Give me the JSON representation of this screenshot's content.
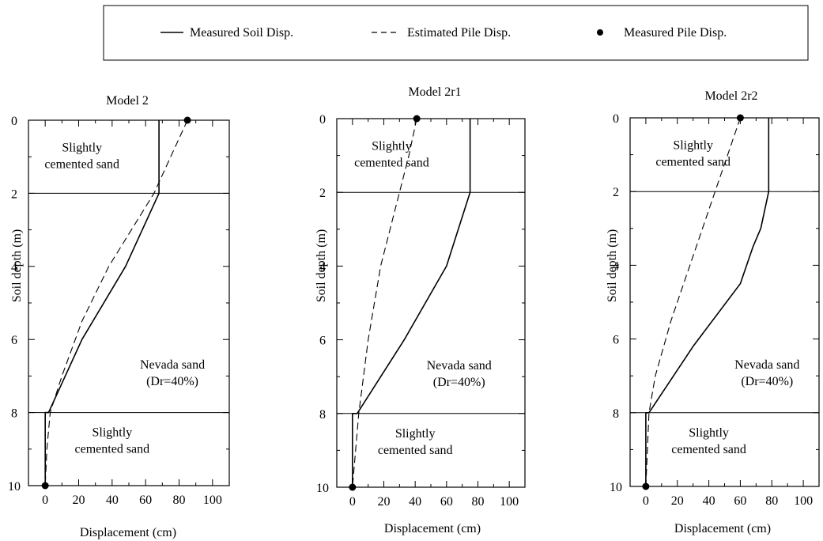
{
  "legend": {
    "items": [
      {
        "label": "Measured Soil Disp.",
        "style": "solid"
      },
      {
        "label": "Estimated Pile Disp.",
        "style": "dashed"
      },
      {
        "label": "Measured Pile Disp.",
        "style": "marker"
      }
    ]
  },
  "chart_data": [
    {
      "type": "line",
      "title": "Model 2",
      "xlabel": "Displacement (cm)",
      "ylabel": "Soil depth (m)",
      "xlim": [
        -10,
        110
      ],
      "ylim": [
        10,
        0
      ],
      "xticks": [
        "0",
        "20",
        "40",
        "60",
        "80",
        "100"
      ],
      "yticks": [
        "0",
        "2",
        "4",
        "6",
        "8",
        "10"
      ],
      "layer_boundaries": [
        2,
        8
      ],
      "zone_labels": [
        {
          "lines": [
            "Slightly",
            "cemented sand"
          ],
          "x": 22,
          "y": 0.85
        },
        {
          "lines": [
            "Nevada sand",
            "(Dr=40%)"
          ],
          "x": 76,
          "y": 6.8
        },
        {
          "lines": [
            "Slightly",
            "cemented sand"
          ],
          "x": 40,
          "y": 8.65
        }
      ],
      "series": [
        {
          "name": "Measured Soil Disp.",
          "style": "solid",
          "x": [
            68,
            68,
            68,
            48,
            22,
            2,
            0,
            0
          ],
          "y": [
            0,
            2,
            2,
            4,
            6,
            8,
            8,
            10
          ]
        },
        {
          "name": "Estimated Pile Disp.",
          "style": "dashed",
          "x": [
            85,
            75,
            65,
            38,
            22,
            10,
            3,
            1,
            0
          ],
          "y": [
            0,
            1,
            2,
            4,
            5.5,
            7,
            8,
            9,
            10
          ]
        },
        {
          "name": "Measured Pile Disp.",
          "style": "marker",
          "x": [
            85,
            0
          ],
          "y": [
            0,
            10
          ]
        }
      ]
    },
    {
      "type": "line",
      "title": "Model 2r1",
      "xlabel": "Displacement (cm)",
      "ylabel": "Soil depth (m)",
      "xlim": [
        -10,
        110
      ],
      "ylim": [
        10,
        0
      ],
      "xticks": [
        "0",
        "20",
        "40",
        "60",
        "80",
        "100"
      ],
      "yticks": [
        "0",
        "2",
        "4",
        "6",
        "8",
        "10"
      ],
      "layer_boundaries": [
        2,
        8
      ],
      "zone_labels": [
        {
          "lines": [
            "Slightly",
            "cemented sand"
          ],
          "x": 25,
          "y": 0.85
        },
        {
          "lines": [
            "Nevada sand",
            "(Dr=40%)"
          ],
          "x": 68,
          "y": 6.8
        },
        {
          "lines": [
            "Slightly",
            "cemented sand"
          ],
          "x": 40,
          "y": 8.65
        }
      ],
      "series": [
        {
          "name": "Measured Soil Disp.",
          "style": "solid",
          "x": [
            75,
            75,
            75,
            60,
            33,
            3,
            0,
            0
          ],
          "y": [
            0,
            2,
            2,
            4,
            6,
            8,
            8,
            10
          ]
        },
        {
          "name": "Estimated Pile Disp.",
          "style": "dashed",
          "x": [
            41,
            36,
            30,
            18,
            10,
            4,
            2,
            0
          ],
          "y": [
            0,
            1,
            2,
            4,
            6,
            8,
            9,
            10
          ]
        },
        {
          "name": "Measured Pile Disp.",
          "style": "marker",
          "x": [
            41,
            0
          ],
          "y": [
            0,
            10
          ]
        }
      ]
    },
    {
      "type": "line",
      "title": "Model 2r2",
      "xlabel": "Displacement (cm)",
      "ylabel": "Soil depth (m)",
      "xlim": [
        -10,
        110
      ],
      "ylim": [
        10,
        0
      ],
      "xticks": [
        "0",
        "20",
        "40",
        "60",
        "80",
        "100"
      ],
      "yticks": [
        "0",
        "2",
        "4",
        "6",
        "8",
        "10"
      ],
      "layer_boundaries": [
        2,
        8
      ],
      "zone_labels": [
        {
          "lines": [
            "Slightly",
            "cemented sand"
          ],
          "x": 30,
          "y": 0.85
        },
        {
          "lines": [
            "Nevada sand",
            "(Dr=40%)"
          ],
          "x": 77,
          "y": 6.8
        },
        {
          "lines": [
            "Slightly",
            "cemented sand"
          ],
          "x": 40,
          "y": 8.65
        }
      ],
      "series": [
        {
          "name": "Measured Soil Disp.",
          "style": "solid",
          "x": [
            78,
            78,
            78,
            73,
            68,
            60,
            30,
            2,
            0,
            0
          ],
          "y": [
            0,
            2,
            2,
            3,
            3.5,
            4.5,
            6.2,
            8,
            8,
            10
          ]
        },
        {
          "name": "Estimated Pile Disp.",
          "style": "dashed",
          "x": [
            60,
            52,
            44,
            28,
            16,
            6,
            2,
            0
          ],
          "y": [
            0,
            1,
            2,
            4,
            5.5,
            7,
            8,
            10
          ]
        },
        {
          "name": "Measured Pile Disp.",
          "style": "marker",
          "x": [
            60,
            0
          ],
          "y": [
            0,
            10
          ]
        }
      ]
    }
  ]
}
